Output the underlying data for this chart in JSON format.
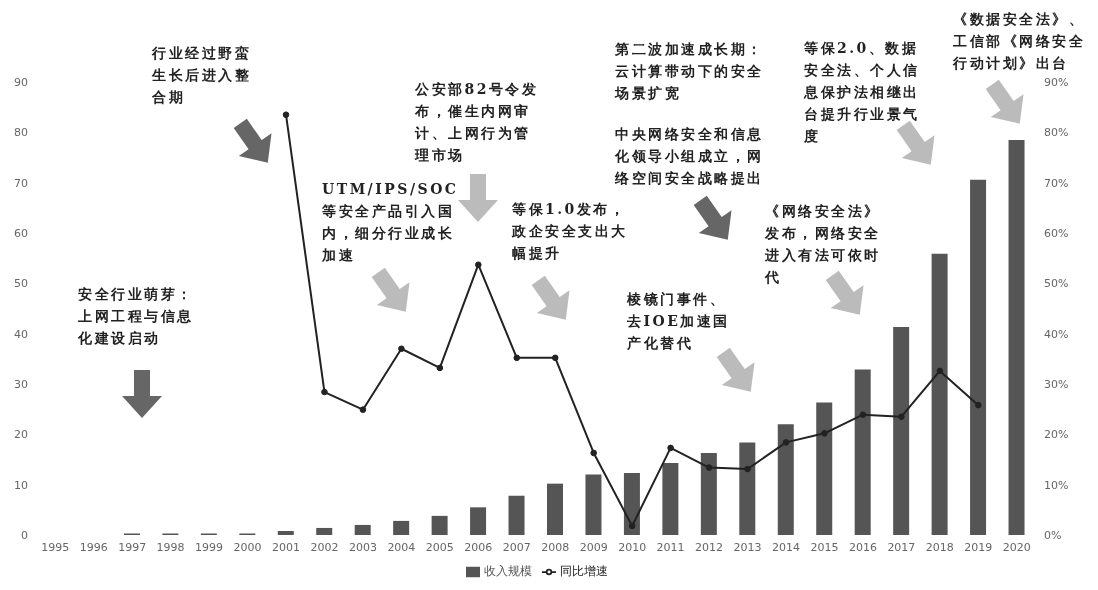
{
  "chart_data": {
    "type": "bar",
    "categories": [
      "1995",
      "1996",
      "1997",
      "1998",
      "1999",
      "2000",
      "2001",
      "2002",
      "2003",
      "2004",
      "2005",
      "2006",
      "2007",
      "2008",
      "2009",
      "2010",
      "2011",
      "2012",
      "2013",
      "2014",
      "2015",
      "2016",
      "2017",
      "2018",
      "2019",
      "2020"
    ],
    "series": [
      {
        "name": "收入规模",
        "color": "#555555",
        "values": [
          null,
          null,
          0.3,
          0.3,
          0.3,
          0.3,
          0.8,
          1.4,
          2,
          2.8,
          3.8,
          5.5,
          7.8,
          10.2,
          12,
          12.3,
          14.3,
          16.3,
          18.4,
          22,
          26.3,
          32.9,
          41.3,
          55.9,
          70.6,
          78.5
        ]
      },
      {
        "name": "同比增速",
        "type": "line",
        "axis": "y2",
        "color": "#222222",
        "values": [
          null,
          null,
          null,
          null,
          null,
          null,
          83.5,
          28.4,
          24.9,
          37,
          33.2,
          53.7,
          35.2,
          35.2,
          16.3,
          1.8,
          17.3,
          13.4,
          13.1,
          18.4,
          20.2,
          23.9,
          23.5,
          32.6,
          25.8,
          null
        ]
      }
    ],
    "ylim": [
      0,
      90
    ],
    "yticks": [
      0,
      10,
      20,
      30,
      40,
      50,
      60,
      70,
      80,
      90
    ],
    "y2lim": [
      0,
      90
    ],
    "y2ticks": [
      {
        "value": 0,
        "label": "0%"
      },
      {
        "value": 10,
        "label": "10%"
      },
      {
        "value": 20,
        "label": "20%"
      },
      {
        "value": 30,
        "label": "30%"
      },
      {
        "value": 40,
        "label": "40%"
      },
      {
        "value": 50,
        "label": "50%"
      },
      {
        "value": 60,
        "label": "60%"
      },
      {
        "value": 70,
        "label": "70%"
      },
      {
        "value": 80,
        "label": "80%"
      },
      {
        "value": 90,
        "label": "90%"
      }
    ],
    "legend": "bottom",
    "marker": "circle",
    "annotations": [
      "安全行业萌芽：上网工程与信息化建设启动",
      "行业经过野蛮生长后进入整合期",
      "UTM/IPS/SOC等安全产品引入国内，细分行业成长加速",
      "公安部82号令发布，催生内网审计、上网行为管理市场",
      "等保1.0发布，政企安全支出大幅提升",
      "第二波加速成长期：云计算带动下的安全场景扩宽",
      "中央网络安全和信息化领导小组成立，网络空间安全战略提出",
      "棱镜门事件、去IOE加速国产化替代",
      "《网络安全法》发布，网络安全进入有法可依时代",
      "等保2.0、数据安全法、个人信息保护法相继出台提升行业景气度",
      "《数据安全法》、工信部《网络安全行动计划》出台"
    ]
  }
}
